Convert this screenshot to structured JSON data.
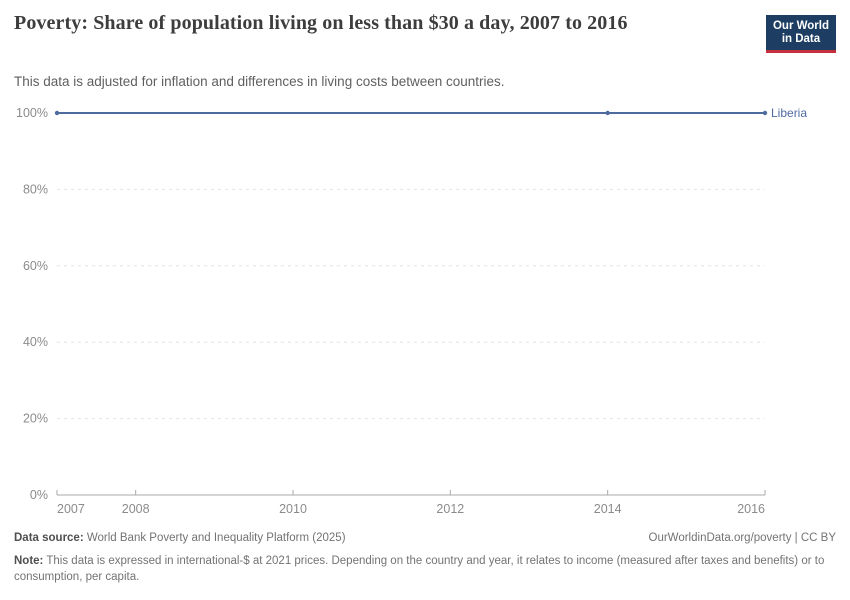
{
  "header": {
    "title": "Poverty: Share of population living on less than $30 a day, 2007 to 2016",
    "subtitle": "This data is adjusted for inflation and differences in living costs between countries.",
    "logo": {
      "line1": "Our World",
      "line2": "in Data",
      "bg_color": "#1d3d63",
      "bar_color": "#c5303c"
    }
  },
  "chart_data": {
    "type": "line",
    "title": "Poverty: Share of population living on less than $30 a day, 2007 to 2016",
    "series": [
      {
        "name": "Liberia",
        "color": "#4e6ba0",
        "x": [
          2007,
          2014,
          2016
        ],
        "values": [
          100,
          100,
          100
        ]
      }
    ],
    "xlim": [
      2007,
      2016
    ],
    "x_ticks": [
      2007,
      2008,
      2010,
      2012,
      2014,
      2016
    ],
    "ylim": [
      0,
      100
    ],
    "y_ticks": [
      0,
      20,
      40,
      60,
      80,
      100
    ],
    "y_tick_suffix": "%",
    "grid": "horizontal-dashed",
    "legend": "line-end-label",
    "xlabel": "",
    "ylabel": ""
  },
  "footer": {
    "datasource_label": "Data source:",
    "datasource_value": " World Bank Poverty and Inequality Platform (2025)",
    "link": "OurWorldinData.org/poverty | CC BY",
    "note_label": "Note:",
    "note_value": " This data is expressed in international-$ at 2021 prices. Depending on the country and year, it relates to income (measured after taxes and benefits) or to consumption, per capita."
  }
}
